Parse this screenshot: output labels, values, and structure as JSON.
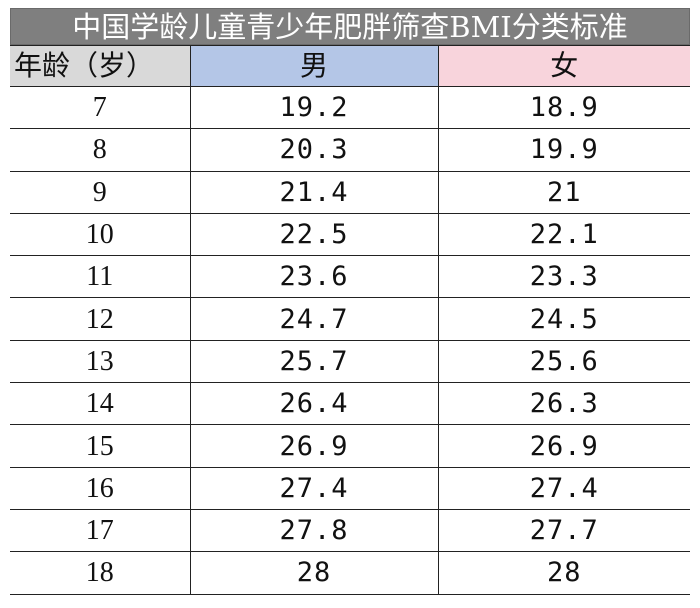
{
  "title": "中国学龄儿童青少年肥胖筛查BMI分类标准",
  "columns": {
    "age": "年龄（岁）",
    "male": "男",
    "female": "女"
  },
  "colors": {
    "title_bg": "#7f7f7f",
    "age_header_bg": "#d9d9d9",
    "male_header_bg": "#b4c6e7",
    "female_header_bg": "#f8d4dc"
  },
  "rows": [
    {
      "age": "7",
      "male": "19.2",
      "female": "18.9"
    },
    {
      "age": "8",
      "male": "20.3",
      "female": "19.9"
    },
    {
      "age": "9",
      "male": "21.4",
      "female": "21"
    },
    {
      "age": "10",
      "male": "22.5",
      "female": "22.1"
    },
    {
      "age": "11",
      "male": "23.6",
      "female": "23.3"
    },
    {
      "age": "12",
      "male": "24.7",
      "female": "24.5"
    },
    {
      "age": "13",
      "male": "25.7",
      "female": "25.6"
    },
    {
      "age": "14",
      "male": "26.4",
      "female": "26.3"
    },
    {
      "age": "15",
      "male": "26.9",
      "female": "26.9"
    },
    {
      "age": "16",
      "male": "27.4",
      "female": "27.4"
    },
    {
      "age": "17",
      "male": "27.8",
      "female": "27.7"
    },
    {
      "age": "18",
      "male": "28",
      "female": "28"
    }
  ]
}
